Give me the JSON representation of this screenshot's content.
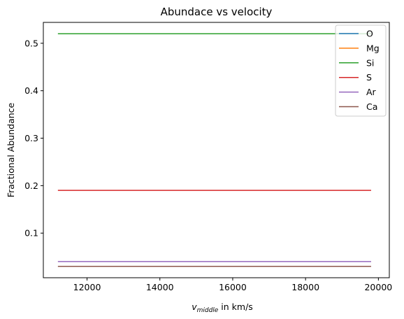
{
  "chart_data": {
    "type": "line",
    "title": "Abundace vs velocity",
    "xlabel_var": "v",
    "xlabel_sub": "middle",
    "xlabel_rest": " in km/s",
    "ylabel": "Fractional Abundance",
    "xlim": [
      10800,
      20300
    ],
    "ylim": [
      0.006,
      0.544
    ],
    "x_ticks": [
      12000,
      14000,
      16000,
      18000,
      20000
    ],
    "y_ticks": [
      0.1,
      0.2,
      0.3,
      0.4,
      0.5
    ],
    "x_tick_labels": [
      "12000",
      "14000",
      "16000",
      "18000",
      "20000"
    ],
    "y_tick_labels": [
      "0.1",
      "0.2",
      "0.3",
      "0.4",
      "0.5"
    ],
    "x": [
      11200,
      19800
    ],
    "legend_position": "top-right",
    "grid": false,
    "series": [
      {
        "name": "O",
        "color": "#1f77b4",
        "values": [
          0.0,
          0.0
        ]
      },
      {
        "name": "Mg",
        "color": "#ff7f0e",
        "values": [
          0.0,
          0.0
        ]
      },
      {
        "name": "Si",
        "color": "#2ca02c",
        "values": [
          0.52,
          0.52
        ]
      },
      {
        "name": "S",
        "color": "#d62728",
        "values": [
          0.19,
          0.19
        ]
      },
      {
        "name": "Ar",
        "color": "#9467bd",
        "values": [
          0.04,
          0.04
        ]
      },
      {
        "name": "Ca",
        "color": "#8c564b",
        "values": [
          0.03,
          0.03
        ]
      }
    ]
  }
}
